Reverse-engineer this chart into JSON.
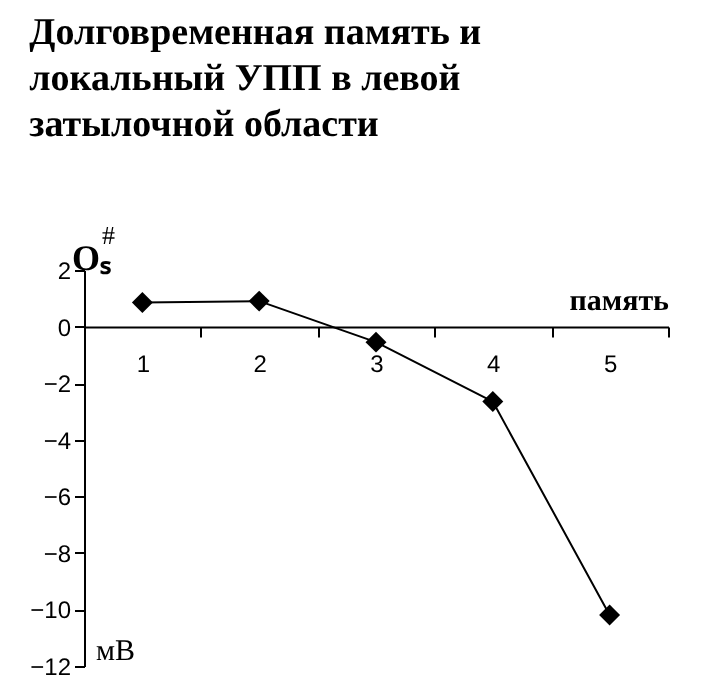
{
  "chart_data": {
    "type": "line",
    "title": "Долговременная память и локальный УПП в левой затылочной области",
    "xlabel": "память",
    "ylabel": "Oₛ$^{#}$",
    "annotations": [
      "мВ"
    ],
    "categories": [
      "1",
      "2",
      "3",
      "4",
      "5"
    ],
    "series": [
      {
        "color": "#000000",
        "values": [
          0.85,
          0.9,
          -0.55,
          -2.65,
          -10.2
        ]
      }
    ],
    "ylim": [
      -12,
      2
    ],
    "yticks": [
      -12,
      -10,
      -8,
      -6,
      -4,
      -2,
      0,
      2
    ],
    "marker": "diamond",
    "grid": false
  }
}
